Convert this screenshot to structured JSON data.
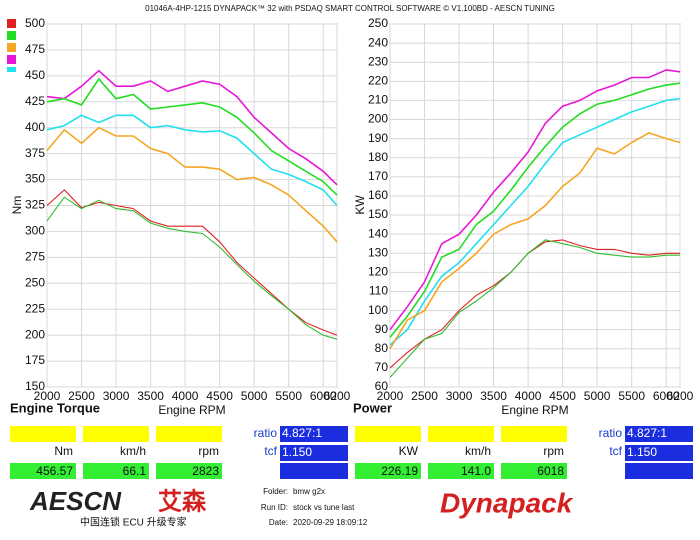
{
  "header": {
    "title": "01046A-4HP-1215 DYNAPACK™ 32 with PSDAQ SMART CONTROL SOFTWARE © V1.100BD - AESCN TUNING"
  },
  "chart_data": [
    {
      "type": "line",
      "title": "Engine Torque",
      "x_label": "Engine RPM",
      "y_label": "Nm",
      "x": [
        2000,
        2250,
        2500,
        2750,
        3000,
        3250,
        3500,
        3750,
        4000,
        4250,
        4500,
        4750,
        5000,
        5250,
        5500,
        5750,
        6000,
        6200
      ],
      "xlim": [
        2000,
        6200
      ],
      "xticks": [
        2000,
        2500,
        3000,
        3500,
        4000,
        4500,
        5000,
        5500,
        6000,
        6200
      ],
      "ylim": [
        150,
        500
      ],
      "yticks": [
        150,
        175,
        200,
        225,
        250,
        275,
        300,
        325,
        350,
        375,
        400,
        425,
        450,
        475,
        500
      ],
      "grid": true,
      "series": [
        {
          "color": "#e817d8",
          "values": [
            430,
            428,
            440,
            455,
            440,
            440,
            445,
            435,
            440,
            445,
            442,
            430,
            410,
            395,
            380,
            370,
            358,
            345
          ]
        },
        {
          "color": "#22dd22",
          "values": [
            425,
            428,
            422,
            447,
            428,
            432,
            418,
            420,
            422,
            424,
            420,
            410,
            395,
            378,
            368,
            358,
            348,
            335
          ]
        },
        {
          "color": "#22e0ee",
          "values": [
            398,
            402,
            412,
            405,
            412,
            412,
            400,
            402,
            398,
            396,
            397,
            390,
            375,
            360,
            355,
            348,
            340,
            325
          ]
        },
        {
          "color": "#f5a623",
          "values": [
            378,
            398,
            385,
            400,
            392,
            392,
            380,
            375,
            362,
            362,
            360,
            350,
            352,
            345,
            335,
            320,
            305,
            290
          ]
        },
        {
          "color": "#e02020",
          "values": [
            325,
            340,
            323,
            328,
            325,
            322,
            310,
            305,
            305,
            305,
            290,
            270,
            255,
            240,
            225,
            212,
            205,
            200
          ]
        },
        {
          "color": "#33bb33",
          "values": [
            310,
            333,
            322,
            330,
            322,
            320,
            308,
            303,
            300,
            298,
            285,
            268,
            252,
            238,
            225,
            210,
            200,
            196
          ]
        }
      ]
    },
    {
      "type": "line",
      "title": "Power",
      "x_label": "Engine RPM",
      "y_label": "KW",
      "x": [
        2000,
        2250,
        2500,
        2750,
        3000,
        3250,
        3500,
        3750,
        4000,
        4250,
        4500,
        4750,
        5000,
        5250,
        5500,
        5750,
        6000,
        6200
      ],
      "xlim": [
        2000,
        6200
      ],
      "xticks": [
        2000,
        2500,
        3000,
        3500,
        4000,
        4500,
        5000,
        5500,
        6000,
        6200
      ],
      "ylim": [
        60,
        250
      ],
      "yticks": [
        60,
        70,
        80,
        90,
        100,
        110,
        120,
        130,
        140,
        150,
        160,
        170,
        180,
        190,
        200,
        210,
        220,
        230,
        240,
        250
      ],
      "grid": true,
      "series": [
        {
          "color": "#e817d8",
          "values": [
            90,
            102,
            115,
            135,
            140,
            150,
            162,
            172,
            183,
            198,
            207,
            210,
            215,
            218,
            222,
            222,
            226,
            225
          ]
        },
        {
          "color": "#22dd22",
          "values": [
            86,
            97,
            110,
            128,
            132,
            145,
            152,
            163,
            175,
            186,
            196,
            203,
            208,
            210,
            213,
            216,
            218,
            219
          ]
        },
        {
          "color": "#22e0ee",
          "values": [
            82,
            90,
            105,
            118,
            125,
            135,
            145,
            155,
            165,
            177,
            188,
            192,
            196,
            200,
            204,
            207,
            210,
            211
          ]
        },
        {
          "color": "#f5a623",
          "values": [
            80,
            95,
            100,
            115,
            122,
            130,
            140,
            145,
            148,
            155,
            165,
            172,
            185,
            182,
            188,
            193,
            190,
            188
          ]
        },
        {
          "color": "#e02020",
          "values": [
            70,
            78,
            85,
            90,
            100,
            108,
            113,
            120,
            130,
            136,
            137,
            134,
            132,
            132,
            130,
            129,
            130,
            130
          ]
        },
        {
          "color": "#33bb33",
          "values": [
            65,
            75,
            85,
            88,
            99,
            105,
            112,
            120,
            130,
            137,
            135,
            133,
            130,
            129,
            128,
            128,
            129,
            129
          ]
        }
      ]
    }
  ],
  "readouts": [
    {
      "fields": [
        {
          "label": "Nm",
          "value": "456.57"
        },
        {
          "label": "km/h",
          "value": "66.1"
        },
        {
          "label": "rpm",
          "value": "2823"
        }
      ],
      "ratio_label": "ratio",
      "ratio": "4.827:1",
      "tcf_label": "tcf",
      "tcf": "1.150"
    },
    {
      "fields": [
        {
          "label": "KW",
          "value": "226.19"
        },
        {
          "label": "km/h",
          "value": "141.0"
        },
        {
          "label": "rpm",
          "value": "6018"
        }
      ],
      "ratio_label": "ratio",
      "ratio": "4.827:1",
      "tcf_label": "tcf",
      "tcf": "1.150"
    }
  ],
  "footer": {
    "logo": "AESCN",
    "logo_cn": "艾森",
    "slogan": "中国连锁 ECU 升级专家",
    "folder_label": "Folder:",
    "folder": "bmw g2x",
    "run_label": "Run ID:",
    "run": "stock vs tune last",
    "date_label": "Date:",
    "date": "2020-09-29 18:09:12",
    "brand": "Dynapack"
  }
}
